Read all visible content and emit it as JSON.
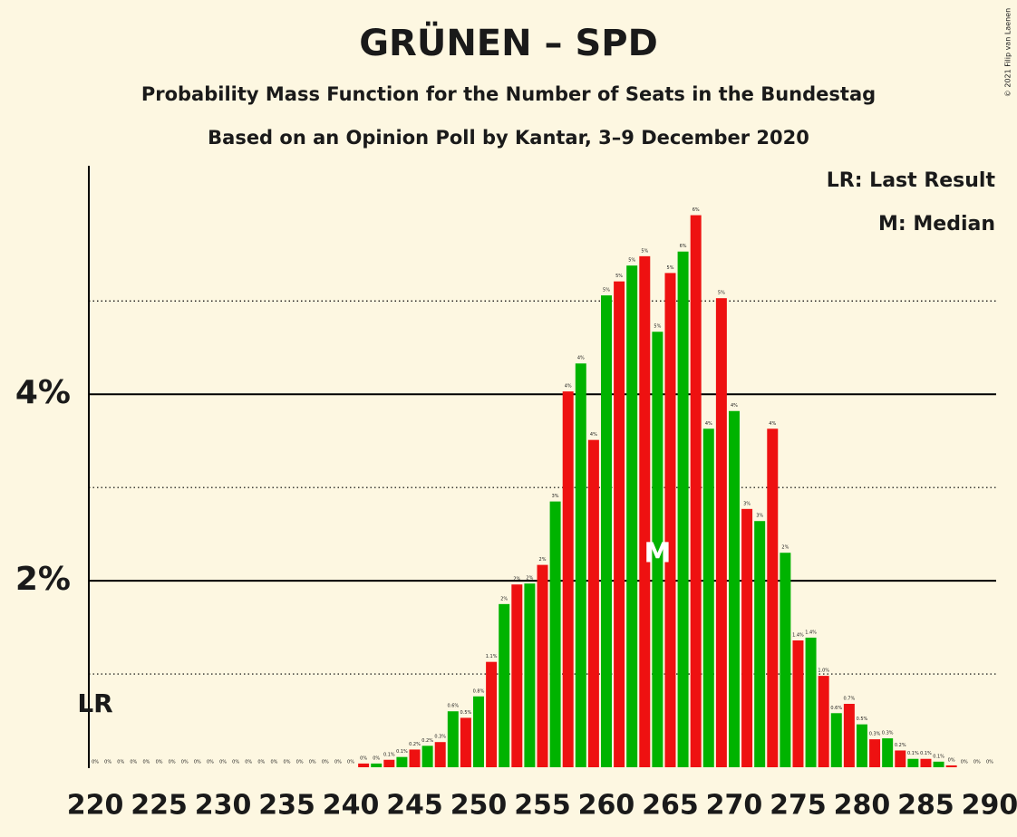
{
  "chart_data": {
    "type": "bar",
    "title": "GRÜNEN – SPD",
    "subtitle": "Probability Mass Function for the Number of Seats in the Bundestag",
    "subtitle2": "Based on an Opinion Poll by Kantar, 3–9 December 2020",
    "copyright": "© 2021 Filip van Laenen",
    "legend": [
      "LR: Last Result",
      "M: Median"
    ],
    "legend_position": "top-right",
    "x": [
      220,
      221,
      222,
      223,
      224,
      225,
      226,
      227,
      228,
      229,
      230,
      231,
      232,
      233,
      234,
      235,
      236,
      237,
      238,
      239,
      240,
      241,
      242,
      243,
      244,
      245,
      246,
      247,
      248,
      249,
      250,
      251,
      252,
      253,
      254,
      255,
      256,
      257,
      258,
      259,
      260,
      261,
      262,
      263,
      264,
      265,
      266,
      267,
      268,
      269,
      270,
      271,
      272,
      273,
      274,
      275,
      276,
      277,
      278,
      279,
      280,
      281,
      282,
      283,
      284,
      285,
      286,
      287,
      288,
      289,
      290
    ],
    "values": [
      0,
      0,
      0,
      0,
      0,
      0,
      0,
      0,
      0,
      0,
      0,
      0,
      0,
      0,
      0,
      0,
      0,
      0,
      0,
      0,
      0,
      0.04,
      0.04,
      0.08,
      0.11,
      0.19,
      0.23,
      0.27,
      0.6,
      0.53,
      0.76,
      1.13,
      1.75,
      1.96,
      1.97,
      2.17,
      2.85,
      4.03,
      4.33,
      3.51,
      5.06,
      5.21,
      5.38,
      5.48,
      4.67,
      5.3,
      5.53,
      5.92,
      3.63,
      5.03,
      3.82,
      2.77,
      2.64,
      3.63,
      2.3,
      1.36,
      1.39,
      0.98,
      0.58,
      0.68,
      0.46,
      0.3,
      0.31,
      0.18,
      0.09,
      0.09,
      0.06,
      0.02,
      0,
      0,
      0
    ],
    "value_labels": [
      "0%",
      "0%",
      "0%",
      "0%",
      "0%",
      "0%",
      "0%",
      "0%",
      "0%",
      "0%",
      "0%",
      "0%",
      "0%",
      "0%",
      "0%",
      "0%",
      "0%",
      "0%",
      "0%",
      "0%",
      "0%",
      "0%",
      "0%",
      "0.1%",
      "0.1%",
      "0.2%",
      "0.2%",
      "0.3%",
      "0.6%",
      "0.5%",
      "0.8%",
      "1.1%",
      "2%",
      "2%",
      "2%",
      "2%",
      "3%",
      "4%",
      "4%",
      "4%",
      "5%",
      "5%",
      "5%",
      "5%",
      "5%",
      "5%",
      "6%",
      "6%",
      "4%",
      "5%",
      "4%",
      "3%",
      "3%",
      "4%",
      "2%",
      "1.4%",
      "1.4%",
      "1.0%",
      "0.6%",
      "0.7%",
      "0.5%",
      "0.3%",
      "0.3%",
      "0.2%",
      "0.1%",
      "0.1%",
      "0.1%",
      "0%",
      "0%",
      "0%",
      "0%"
    ],
    "colors": [
      "#00b300",
      "#ee1111"
    ],
    "xlim": [
      219.5,
      290.5
    ],
    "xticks": [
      220,
      225,
      230,
      235,
      240,
      245,
      250,
      255,
      260,
      265,
      270,
      275,
      280,
      285,
      290
    ],
    "ylim": [
      0,
      6.45
    ],
    "yticks": [
      {
        "value": 2,
        "label": "2%"
      },
      {
        "value": 4,
        "label": "4%"
      }
    ],
    "y_minor_ticks": [
      1,
      3,
      5
    ],
    "last_result": 220,
    "last_result_label": "LR",
    "median": 264,
    "median_label": "M"
  }
}
